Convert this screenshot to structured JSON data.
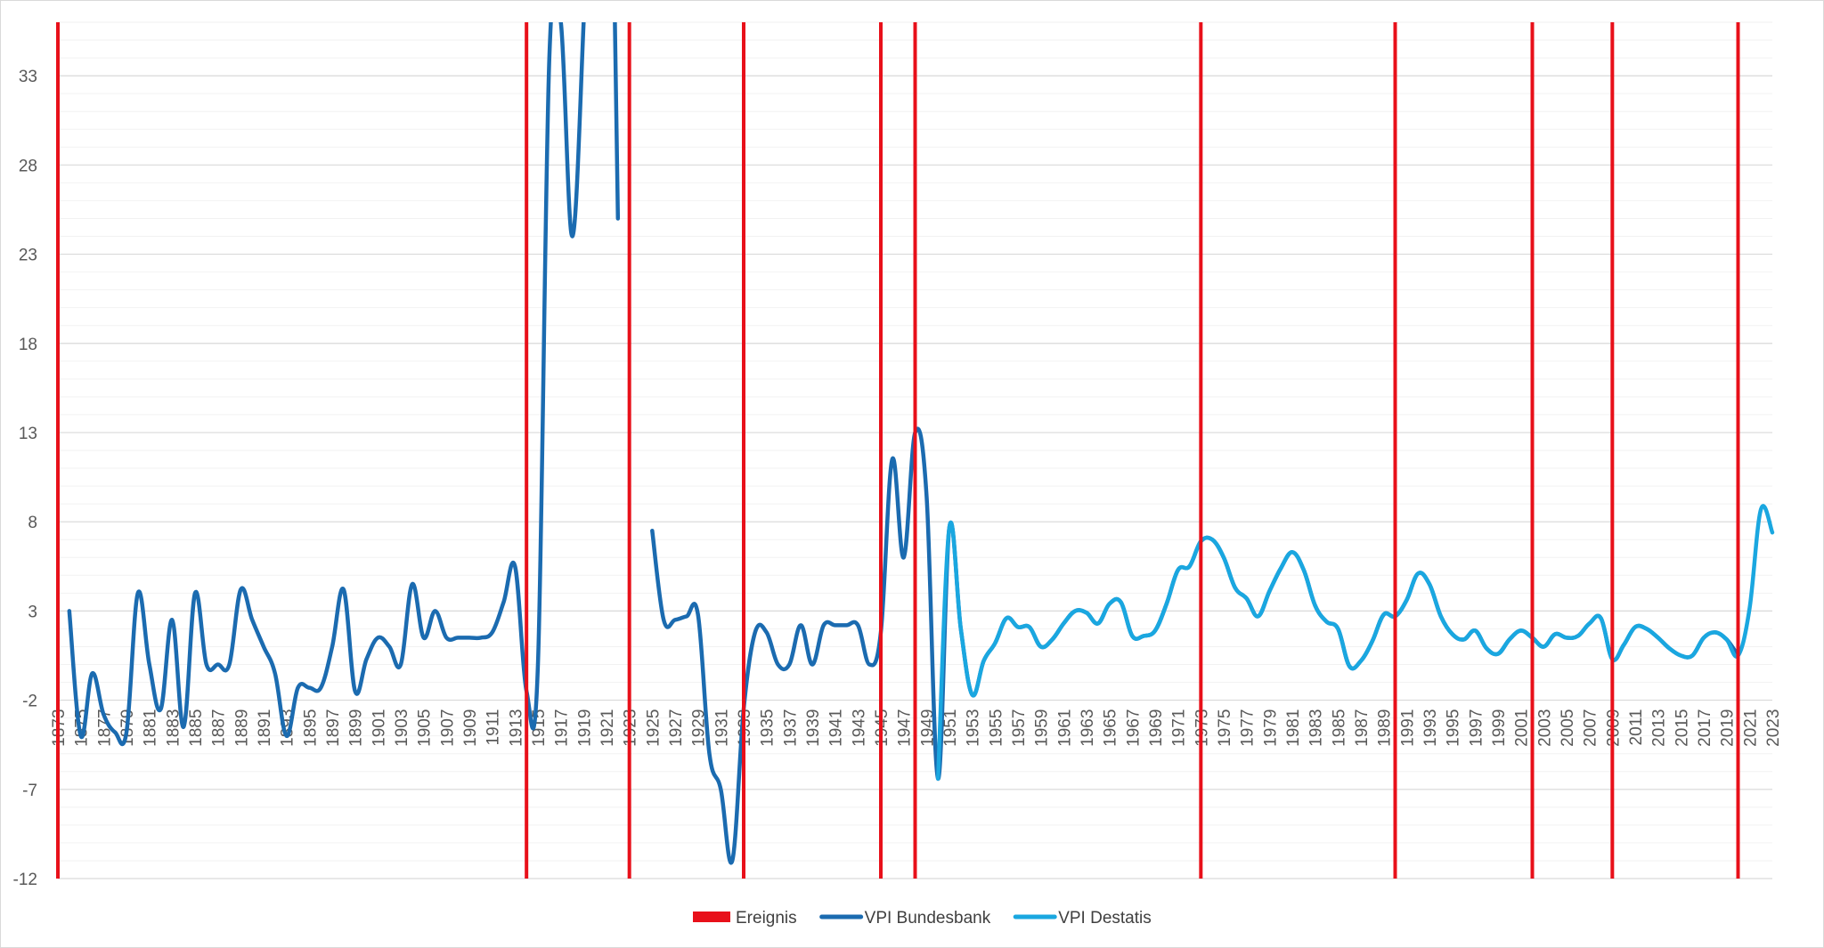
{
  "chart_data": {
    "type": "line",
    "title": "",
    "xlabel": "",
    "ylabel": "",
    "xlim": [
      1873,
      2023
    ],
    "ylim": [
      -12,
      36
    ],
    "y_ticks": [
      -12,
      -7,
      -2,
      3,
      8,
      13,
      18,
      23,
      28,
      33
    ],
    "x_tick_start": 1873,
    "x_tick_end": 2023,
    "x_tick_step": 2,
    "grid": "horizontal",
    "legend_position": "bottom",
    "legend": [
      {
        "key": "events",
        "label": "Ereignis",
        "color": "#e8101a"
      },
      {
        "key": "bundesbank",
        "label": "VPI Bundesbank",
        "color": "#1b6bb0"
      },
      {
        "key": "destatis",
        "label": "VPI Destatis",
        "color": "#1aa7e0"
      }
    ],
    "events": [
      1873,
      1914,
      1923,
      1933,
      1945,
      1948,
      1973,
      1990,
      2002,
      2009,
      2020
    ],
    "series": [
      {
        "key": "bundesbank",
        "name": "VPI Bundesbank",
        "color": "#1b6bb0",
        "segments": [
          [
            [
              1874,
              3
            ],
            [
              1875,
              -4
            ],
            [
              1876,
              -0.5
            ],
            [
              1877,
              -2.8
            ],
            [
              1878,
              -3.8
            ],
            [
              1879,
              -3.8
            ],
            [
              1880,
              4
            ],
            [
              1881,
              0
            ],
            [
              1882,
              -2.5
            ],
            [
              1883,
              2.5
            ],
            [
              1884,
              -3.5
            ],
            [
              1885,
              4
            ],
            [
              1886,
              0
            ],
            [
              1887,
              0
            ],
            [
              1888,
              0
            ],
            [
              1889,
              4.2
            ],
            [
              1890,
              2.5
            ],
            [
              1891,
              1
            ],
            [
              1892,
              -0.5
            ],
            [
              1893,
              -4
            ],
            [
              1894,
              -1.3
            ],
            [
              1895,
              -1.3
            ],
            [
              1896,
              -1.3
            ],
            [
              1897,
              1
            ],
            [
              1898,
              4.2
            ],
            [
              1899,
              -1.5
            ],
            [
              1900,
              0.3
            ],
            [
              1901,
              1.5
            ],
            [
              1902,
              1
            ],
            [
              1903,
              0
            ],
            [
              1904,
              4.5
            ],
            [
              1905,
              1.5
            ],
            [
              1906,
              3
            ],
            [
              1907,
              1.5
            ],
            [
              1908,
              1.5
            ],
            [
              1909,
              1.5
            ],
            [
              1910,
              1.5
            ],
            [
              1911,
              1.8
            ],
            [
              1912,
              3.5
            ],
            [
              1913,
              5.5
            ],
            [
              1914,
              -1.5
            ],
            [
              1915,
              0
            ],
            [
              1916,
              34
            ],
            [
              1917,
              36
            ],
            [
              1918,
              24
            ],
            [
              1919,
              36
            ],
            [
              1919.8,
              50
            ]
          ],
          [
            [
              1921.4,
              50
            ],
            [
              1922,
              25
            ]
          ],
          [
            [
              1925,
              7.5
            ],
            [
              1926,
              2.5
            ],
            [
              1927,
              2.5
            ],
            [
              1928,
              2.7
            ],
            [
              1929,
              2.8
            ],
            [
              1930,
              -5
            ],
            [
              1931,
              -7
            ],
            [
              1932,
              -11
            ],
            [
              1933,
              -2.5
            ],
            [
              1934,
              1.8
            ],
            [
              1935,
              1.8
            ],
            [
              1936,
              0
            ],
            [
              1937,
              0
            ],
            [
              1938,
              2.2
            ],
            [
              1939,
              0
            ],
            [
              1940,
              2.2
            ],
            [
              1941,
              2.2
            ],
            [
              1942,
              2.2
            ],
            [
              1943,
              2.2
            ],
            [
              1944,
              0
            ],
            [
              1945,
              1.8
            ],
            [
              1946,
              11.5
            ],
            [
              1947,
              6
            ],
            [
              1948,
              13
            ],
            [
              1949,
              9.5
            ],
            [
              1950,
              -6.4
            ],
            [
              1951,
              7.7
            ],
            [
              1952,
              2
            ],
            [
              1953,
              -1.7
            ],
            [
              1954,
              0.2
            ],
            [
              1955,
              1.2
            ],
            [
              1956,
              2.6
            ],
            [
              1957,
              2.1
            ],
            [
              1958,
              2.1
            ],
            [
              1959,
              1
            ],
            [
              1960,
              1.4
            ],
            [
              1961,
              2.3
            ],
            [
              1962,
              3
            ],
            [
              1963,
              2.9
            ],
            [
              1964,
              2.3
            ],
            [
              1965,
              3.4
            ],
            [
              1966,
              3.5
            ],
            [
              1967,
              1.6
            ],
            [
              1968,
              1.6
            ],
            [
              1969,
              1.9
            ],
            [
              1970,
              3.4
            ],
            [
              1971,
              5.3
            ],
            [
              1972,
              5.5
            ],
            [
              1973,
              6.9
            ],
            [
              1974,
              7
            ],
            [
              1975,
              6
            ],
            [
              1976,
              4.3
            ],
            [
              1977,
              3.7
            ],
            [
              1978,
              2.7
            ],
            [
              1979,
              4.1
            ],
            [
              1980,
              5.4
            ],
            [
              1981,
              6.3
            ],
            [
              1982,
              5.3
            ],
            [
              1983,
              3.3
            ],
            [
              1984,
              2.4
            ],
            [
              1985,
              2
            ],
            [
              1986,
              -0.1
            ],
            [
              1987,
              0.2
            ],
            [
              1988,
              1.3
            ],
            [
              1989,
              2.8
            ],
            [
              1990,
              2.7
            ],
            [
              1991,
              3.6
            ],
            [
              1992,
              5.1
            ],
            [
              1993,
              4.5
            ],
            [
              1994,
              2.7
            ],
            [
              1995,
              1.7
            ],
            [
              1996,
              1.4
            ],
            [
              1997,
              1.9
            ],
            [
              1998,
              0.9
            ],
            [
              1999,
              0.6
            ],
            [
              2000,
              1.4
            ],
            [
              2001,
              1.9
            ],
            [
              2002,
              1.5
            ],
            [
              2003,
              1
            ],
            [
              2004,
              1.7
            ],
            [
              2005,
              1.5
            ],
            [
              2006,
              1.6
            ],
            [
              2007,
              2.3
            ],
            [
              2008,
              2.6
            ],
            [
              2009,
              0.3
            ],
            [
              2010,
              1.1
            ],
            [
              2011,
              2.1
            ],
            [
              2012,
              2
            ],
            [
              2013,
              1.5
            ],
            [
              2014,
              0.9
            ],
            [
              2015,
              0.5
            ],
            [
              2016,
              0.5
            ],
            [
              2017,
              1.5
            ],
            [
              2018,
              1.8
            ],
            [
              2019,
              1.4
            ],
            [
              2020,
              0.5
            ]
          ]
        ]
      },
      {
        "key": "destatis",
        "name": "VPI Destatis",
        "color": "#1aa7e0",
        "segments": [
          [
            [
              1950,
              -6.4
            ],
            [
              1951,
              7.7
            ],
            [
              1952,
              2
            ],
            [
              1953,
              -1.7
            ],
            [
              1954,
              0.2
            ],
            [
              1955,
              1.2
            ],
            [
              1956,
              2.6
            ],
            [
              1957,
              2.1
            ],
            [
              1958,
              2.1
            ],
            [
              1959,
              1
            ],
            [
              1960,
              1.4
            ],
            [
              1961,
              2.3
            ],
            [
              1962,
              3
            ],
            [
              1963,
              2.9
            ],
            [
              1964,
              2.3
            ],
            [
              1965,
              3.4
            ],
            [
              1966,
              3.5
            ],
            [
              1967,
              1.6
            ],
            [
              1968,
              1.6
            ],
            [
              1969,
              1.9
            ],
            [
              1970,
              3.4
            ],
            [
              1971,
              5.3
            ],
            [
              1972,
              5.5
            ],
            [
              1973,
              6.9
            ],
            [
              1974,
              7
            ],
            [
              1975,
              6
            ],
            [
              1976,
              4.3
            ],
            [
              1977,
              3.7
            ],
            [
              1978,
              2.7
            ],
            [
              1979,
              4.1
            ],
            [
              1980,
              5.4
            ],
            [
              1981,
              6.3
            ],
            [
              1982,
              5.3
            ],
            [
              1983,
              3.3
            ],
            [
              1984,
              2.4
            ],
            [
              1985,
              2
            ],
            [
              1986,
              -0.1
            ],
            [
              1987,
              0.2
            ],
            [
              1988,
              1.3
            ],
            [
              1989,
              2.8
            ],
            [
              1990,
              2.7
            ],
            [
              1991,
              3.6
            ],
            [
              1992,
              5.1
            ],
            [
              1993,
              4.5
            ],
            [
              1994,
              2.7
            ],
            [
              1995,
              1.7
            ],
            [
              1996,
              1.4
            ],
            [
              1997,
              1.9
            ],
            [
              1998,
              0.9
            ],
            [
              1999,
              0.6
            ],
            [
              2000,
              1.4
            ],
            [
              2001,
              1.9
            ],
            [
              2002,
              1.5
            ],
            [
              2003,
              1
            ],
            [
              2004,
              1.7
            ],
            [
              2005,
              1.5
            ],
            [
              2006,
              1.6
            ],
            [
              2007,
              2.3
            ],
            [
              2008,
              2.6
            ],
            [
              2009,
              0.3
            ],
            [
              2010,
              1.1
            ],
            [
              2011,
              2.1
            ],
            [
              2012,
              2
            ],
            [
              2013,
              1.5
            ],
            [
              2014,
              0.9
            ],
            [
              2015,
              0.5
            ],
            [
              2016,
              0.5
            ],
            [
              2017,
              1.5
            ],
            [
              2018,
              1.8
            ],
            [
              2019,
              1.4
            ],
            [
              2020,
              0.5
            ],
            [
              2021,
              3.1
            ],
            [
              2022,
              8.7
            ],
            [
              2023,
              7.4
            ]
          ]
        ]
      }
    ]
  }
}
